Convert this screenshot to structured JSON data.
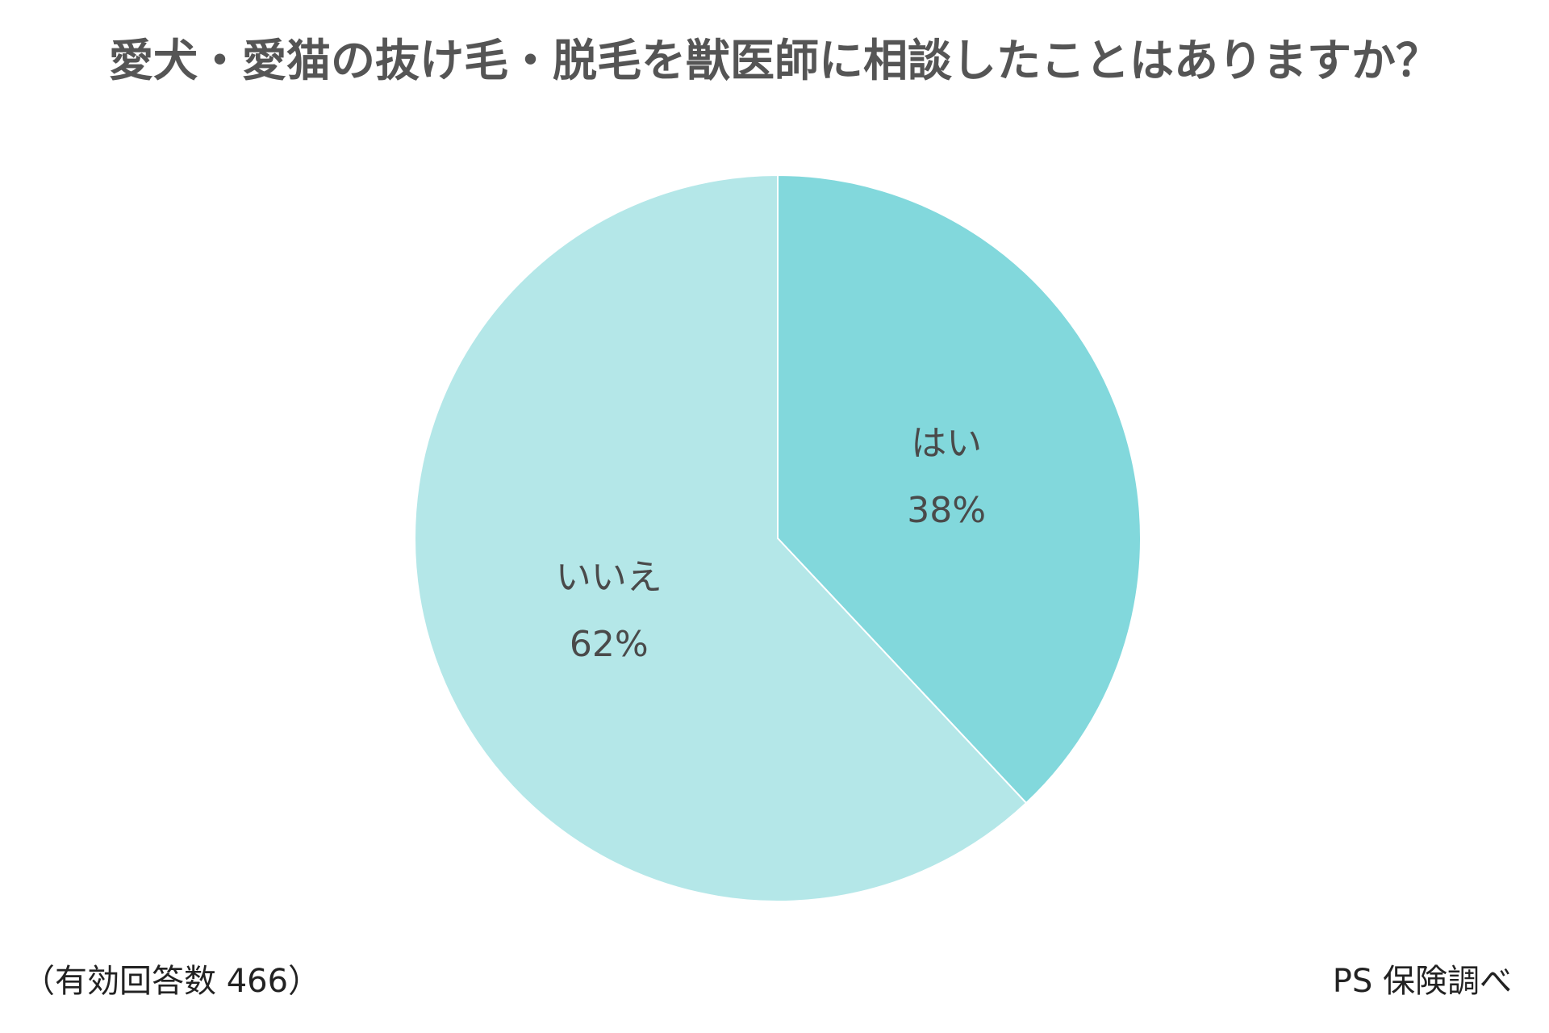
{
  "chart_data": {
    "type": "pie",
    "title": "愛犬・愛猫の抜け毛・脱毛を獣医師に相談したことはありますか？",
    "slices": [
      {
        "label": "はい",
        "value": 38,
        "value_label": "38%",
        "color": "#82d8dc"
      },
      {
        "label": "いいえ",
        "value": 62,
        "value_label": "62%",
        "color": "#b4e7e8"
      }
    ],
    "start_angle": "12 o'clock",
    "direction": "clockwise",
    "legend": "none (labels inside slices)"
  },
  "footnote": "（有効回答数 466）",
  "source": "PS 保険調べ"
}
